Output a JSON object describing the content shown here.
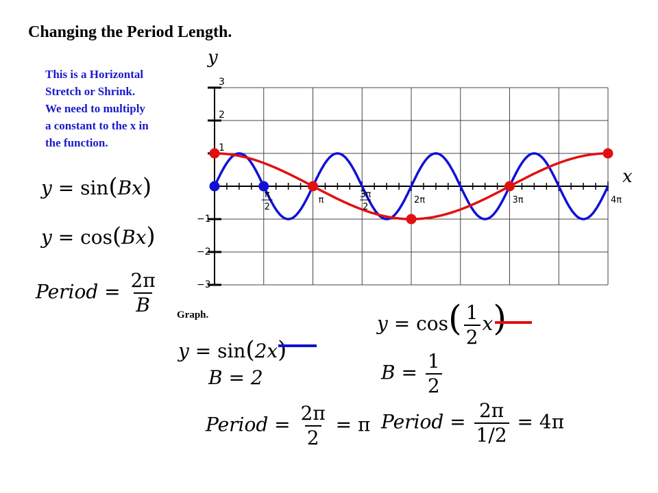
{
  "slide": {
    "title": "Changing the Period Length.",
    "description": [
      "This is a Horizontal",
      "Stretch or Shrink.",
      "We need to multiply",
      "a constant to the x in",
      "the function."
    ],
    "graph_label": "Graph."
  },
  "formulas": {
    "sin_general": {
      "lhs": "y",
      "func": "sin",
      "arg": "Bx"
    },
    "cos_general": {
      "lhs": "y",
      "func": "cos",
      "arg": "Bx"
    },
    "period_general": {
      "lhs": "Period",
      "num": "2π",
      "den": "B"
    },
    "sin_example": {
      "lhs": "y",
      "func": "sin",
      "arg": "2x",
      "b": "B = 2",
      "period_num": "2π",
      "period_den": "2",
      "period_result": "π"
    },
    "cos_example": {
      "lhs": "y",
      "func": "cos",
      "arg_num": "1",
      "arg_den": "2",
      "arg_var": "x",
      "b_num": "1",
      "b_den": "2",
      "period_num": "2π",
      "period_den_num": "1",
      "period_den_den": "2",
      "period_result": "4π"
    }
  },
  "chart_data": {
    "type": "line",
    "xlabel": "x",
    "ylabel": "y",
    "xlim": [
      0,
      12.566
    ],
    "ylim": [
      -3,
      3
    ],
    "y_ticks": [
      "3",
      "2",
      "1",
      "−1",
      "−2",
      "−3"
    ],
    "x_ticks": [
      {
        "num": "π",
        "den": "2",
        "value": 1.5708
      },
      {
        "num": "",
        "den": "",
        "label": "π",
        "value": 3.1416
      },
      {
        "num": "3π",
        "den": "2",
        "value": 4.7124
      },
      {
        "num": "",
        "den": "",
        "label": "2π",
        "value": 6.2832
      },
      {
        "num": "",
        "den": "",
        "label": "3π",
        "value": 9.4248
      },
      {
        "num": "",
        "den": "",
        "label": "4π",
        "value": 12.566
      }
    ],
    "series": [
      {
        "expression": "y = sin(2x)",
        "color": "#1010d8",
        "points": [
          [
            0,
            0
          ],
          [
            1.5708,
            0
          ]
        ]
      },
      {
        "expression": "y = cos(x/2)",
        "color": "#e01010",
        "points": [
          [
            0,
            1
          ],
          [
            3.1416,
            0
          ],
          [
            6.2832,
            -1
          ],
          [
            9.4248,
            0
          ],
          [
            12.566,
            1
          ]
        ]
      }
    ]
  }
}
